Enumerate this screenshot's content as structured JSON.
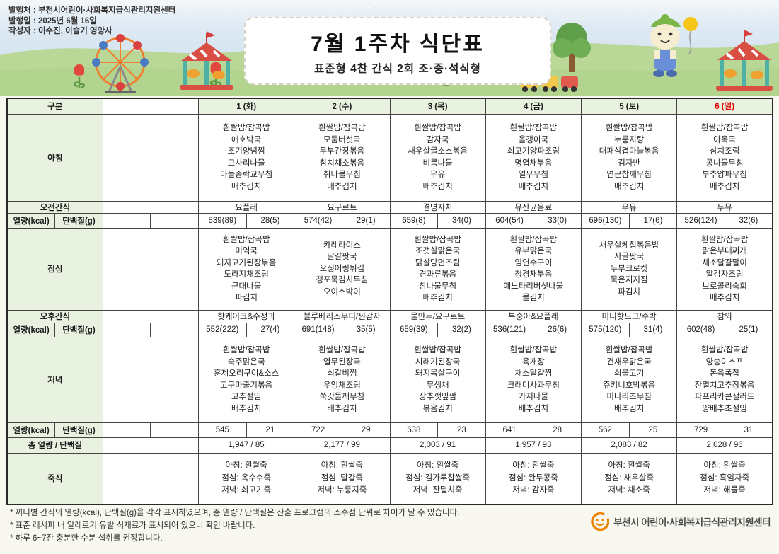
{
  "page": {
    "publisher": "발행처 : 부천시어린이·사회복지급식관리지원센터",
    "publish_date": "발행일 : 2025년 6월 16일",
    "author": "작성자 : 이수진, 이슬기 영양사",
    "title": "7월 1주차 식단표",
    "subtitle": "표준형 4찬 간식 2회 조·중·석식형",
    "stray_mark": "`"
  },
  "table": {
    "corner_label": "구분",
    "row_labels": {
      "breakfast": "아침",
      "am_snack": "오전간식",
      "kcal": "열량(kcal)",
      "protein": "단백질(g)",
      "lunch": "점심",
      "pm_snack": "오후간식",
      "dinner": "저녁",
      "total": "총 열량 / 단백질",
      "porridge": "죽식"
    },
    "days": [
      {
        "header": "1 (화)",
        "breakfast": [
          "흰쌀밥/잡곡밥",
          "애호박국",
          "조기양념찜",
          "고사리나물",
          "마늘종락교무침",
          "배추김치"
        ],
        "am_snack": "요플레",
        "b_kcal": "539(89)",
        "b_prot": "28(5)",
        "lunch": [
          "흰쌀밥/잡곡밥",
          "미역국",
          "돼지고기된장볶음",
          "도라지채조림",
          "근대나물",
          "파김치"
        ],
        "pm_snack": "핫케이크&수정과",
        "l_kcal": "552(222)",
        "l_prot": "27(4)",
        "dinner": [
          "흰쌀밥/잡곡밥",
          "숙주맑은국",
          "훈제오리구이&소스",
          "고구마줄기볶음",
          "고추절임",
          "배추김치"
        ],
        "d_kcal": "545",
        "d_prot": "21",
        "total": "1,947 / 85",
        "porridge": [
          "아침: 흰쌀죽",
          "점심: 옥수수죽",
          "저녁: 쇠고기죽"
        ]
      },
      {
        "header": "2 (수)",
        "breakfast": [
          "흰쌀밥/잡곡밥",
          "모둠버섯국",
          "두부간장볶음",
          "참치채소볶음",
          "취나물무침",
          "배추김치"
        ],
        "am_snack": "요구르트",
        "b_kcal": "574(42)",
        "b_prot": "29(1)",
        "lunch": [
          "카레라이스",
          "달걀팟국",
          "오징어링튀김",
          "청포묵김치무침",
          "오이소박이"
        ],
        "pm_snack": "블루베리스무디/찐감자",
        "l_kcal": "691(148)",
        "l_prot": "35(5)",
        "dinner": [
          "흰쌀밥/잡곡밥",
          "열무된장국",
          "쇠갈비찜",
          "우엉채조림",
          "쑥갓들깨무침",
          "배추김치"
        ],
        "d_kcal": "722",
        "d_prot": "29",
        "total": "2,177 / 99",
        "porridge": [
          "아침: 흰쌀죽",
          "점심: 달걀죽",
          "저녁: 누룽지죽"
        ]
      },
      {
        "header": "3 (목)",
        "breakfast": [
          "흰쌀밥/잡곡밥",
          "감자국",
          "새우살굴소스볶음",
          "비름나물",
          "우유",
          "배추김치"
        ],
        "am_snack": "결명자차",
        "b_kcal": "659(8)",
        "b_prot": "34(0)",
        "lunch": [
          "흰쌀밥/잡곡밥",
          "조갯살맑은국",
          "닭살당면조림",
          "견과류볶음",
          "참나물무침",
          "배추김치"
        ],
        "pm_snack": "물만두/요구르트",
        "l_kcal": "659(39)",
        "l_prot": "32(2)",
        "dinner": [
          "흰쌀밥/잡곡밥",
          "시래기된장국",
          "돼지목살구이",
          "무생채",
          "상추깻잎쌈",
          "볶음김치"
        ],
        "d_kcal": "638",
        "d_prot": "23",
        "total": "2,003 / 91",
        "porridge": [
          "아침: 흰쌀죽",
          "점심: 김가루찹쌀죽",
          "저녁: 잔멸치죽"
        ]
      },
      {
        "header": "4 (금)",
        "breakfast": [
          "흰쌀밥/잡곡밥",
          "올갱이국",
          "쇠고기양파조림",
          "명엽채볶음",
          "열무무침",
          "배추김치"
        ],
        "am_snack": "유산균음료",
        "b_kcal": "604(54)",
        "b_prot": "33(0)",
        "lunch": [
          "흰쌀밥/잡곡밥",
          "유부맑은국",
          "임연수구이",
          "청경채볶음",
          "애느타리버섯나물",
          "물김치"
        ],
        "pm_snack": "복숭아&요플레",
        "l_kcal": "536(121)",
        "l_prot": "26(6)",
        "dinner": [
          "흰쌀밥/잡곡밥",
          "육개장",
          "채소달걀찜",
          "크래미사과무침",
          "가지나물",
          "배추김치"
        ],
        "d_kcal": "641",
        "d_prot": "28",
        "total": "1,957 / 93",
        "porridge": [
          "아침: 흰쌀죽",
          "점심: 완두콩죽",
          "저녁: 감자죽"
        ]
      },
      {
        "header": "5 (토)",
        "breakfast": [
          "흰쌀밥/잡곡밥",
          "누룽지탕",
          "대패삼겹마늘볶음",
          "김자반",
          "연근참깨무침",
          "배추김치"
        ],
        "am_snack": "우유",
        "b_kcal": "696(130)",
        "b_prot": "17(6)",
        "lunch": [
          "새우살케첩볶음밥",
          "사골팟국",
          "두부크로켓",
          "묵은지지짐",
          "파김치"
        ],
        "pm_snack": "미니핫도그/수박",
        "l_kcal": "575(120)",
        "l_prot": "31(4)",
        "dinner": [
          "흰쌀밥/잡곡밥",
          "건새우맑은국",
          "쇠불고기",
          "쥬키니호박볶음",
          "미나리초무침",
          "배추김치"
        ],
        "d_kcal": "562",
        "d_prot": "25",
        "total": "2,083 / 82",
        "porridge": [
          "아침: 흰쌀죽",
          "점심: 새우살죽",
          "저녁: 채소죽"
        ]
      },
      {
        "header": "6 (일)",
        "breakfast": [
          "흰쌀밥/잡곡밥",
          "아욱국",
          "삼치조림",
          "콩나물무침",
          "부추양파무침",
          "배추김치"
        ],
        "am_snack": "두유",
        "b_kcal": "526(124)",
        "b_prot": "32(6)",
        "lunch": [
          "흰쌀밥/잡곡밥",
          "맑은부대찌개",
          "채소달걀말이",
          "알감자조림",
          "브로콜리숙회",
          "배추김치"
        ],
        "pm_snack": "참외",
        "l_kcal": "602(48)",
        "l_prot": "25(1)",
        "dinner": [
          "흰쌀밥/잡곡밥",
          "양송이스프",
          "돈육폭찹",
          "잔멸치고추장볶음",
          "파프리카콘샐러드",
          "양배추초절임"
        ],
        "d_kcal": "729",
        "d_prot": "31",
        "total": "2,028 / 96",
        "porridge": [
          "아침: 흰쌀죽",
          "점심: 흑임자죽",
          "저녁: 해물죽"
        ]
      }
    ]
  },
  "footer": {
    "notes": [
      "* 끼니별 간식의 열량(kcal), 단백질(g)을 각각 표시하였으며, 총 열량 / 단백질은 산출 프로그램의 소수점 단위로 차이가 날 수 있습니다.",
      "* 표준 레시피 내 알레르기 유발 식재료가 표시되어 있으니 확인 바랍니다.",
      "* 하루 6~7잔 충분한 수분 섭취를 권장합니다."
    ],
    "logo_text": "부천시 어린이·사회복지급식관리지원센터"
  },
  "colors": {
    "label_cell_green": "#e9f2e0",
    "sunday_red": "#e60000",
    "logo_orange": "#f08300",
    "grass_green": "#b9d897",
    "sky_blue": "#d6e5f1"
  },
  "decorations": [
    "ferris-wheel-icon",
    "tulip-icon",
    "carousel-icon",
    "tree-icon",
    "train-icon",
    "mascot-icon",
    "balloon-icon",
    "smiley-logo-icon"
  ]
}
